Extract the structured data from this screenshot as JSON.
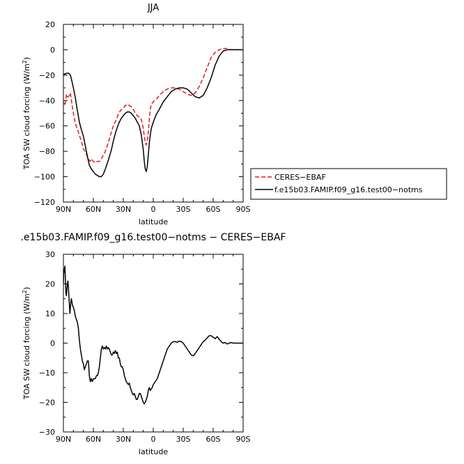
{
  "chart_data": [
    {
      "type": "line",
      "title": "JJA",
      "xlabel": "latitude",
      "ylabel": "TOA SW cloud forcing (W/m",
      "ylabel_sup": "2",
      "ylabel_close": ")",
      "xlim": [
        90,
        -90
      ],
      "ylim": [
        -120,
        20
      ],
      "x_ticks": [
        90,
        60,
        30,
        0,
        -30,
        -60,
        -90
      ],
      "x_tick_labels": [
        "90N",
        "60N",
        "30N",
        "0",
        "30S",
        "60S",
        "90S"
      ],
      "y_ticks": [
        -120,
        -100,
        -80,
        -60,
        -40,
        -20,
        0,
        20
      ],
      "y_tick_labels": [
        "−120",
        "−100",
        "−80",
        "−60",
        "−40",
        "−20",
        "0",
        "20"
      ],
      "legend": {
        "position": "right"
      },
      "series": [
        {
          "name": "CERES−EBAF",
          "color": "#e41a1c",
          "dash": "dashed",
          "x": [
            90,
            89,
            88,
            87,
            86,
            85,
            84,
            83,
            82,
            80,
            78,
            75,
            72,
            70,
            67,
            65,
            63,
            62,
            61,
            60,
            58,
            56,
            54,
            52,
            50,
            48,
            45,
            42,
            40,
            37,
            35,
            33,
            30,
            28,
            26,
            24,
            22,
            20,
            18,
            16,
            14,
            12,
            10,
            9,
            8,
            7,
            6,
            5,
            4,
            3,
            2,
            0,
            -3,
            -6,
            -10,
            -14,
            -18,
            -22,
            -26,
            -30,
            -34,
            -38,
            -42,
            -46,
            -50,
            -54,
            -58,
            -62,
            -66,
            -70,
            -74,
            -78,
            -82,
            -86,
            -90
          ],
          "y": [
            -40,
            -44,
            -42,
            -35,
            -37,
            -37,
            -36,
            -34,
            -40,
            -50,
            -58,
            -65,
            -72,
            -78,
            -82,
            -86,
            -88,
            -86,
            -87,
            -88,
            -89,
            -88,
            -88,
            -86,
            -83,
            -80,
            -73,
            -65,
            -60,
            -55,
            -51,
            -48,
            -46,
            -44,
            -43,
            -44,
            -45,
            -47,
            -50,
            -52,
            -53,
            -55,
            -62,
            -68,
            -73,
            -75,
            -72,
            -65,
            -55,
            -47,
            -43,
            -41,
            -39,
            -36,
            -33,
            -31,
            -30,
            -30,
            -31,
            -33,
            -35,
            -36,
            -34,
            -29,
            -22,
            -14,
            -6,
            -2,
            0,
            1,
            1,
            0,
            0,
            0,
            0
          ]
        },
        {
          "name": "f.e15b03.FAMIP.f09_g16.test00−notms",
          "color": "#000000",
          "dash": "solid",
          "x": [
            90,
            89,
            88,
            87,
            86,
            85,
            84,
            83,
            82,
            80,
            78,
            76,
            74,
            72,
            70,
            68,
            66,
            64,
            62,
            60,
            58,
            56,
            54,
            52,
            50,
            48,
            45,
            42,
            40,
            38,
            36,
            34,
            32,
            30,
            28,
            26,
            24,
            22,
            20,
            18,
            16,
            14,
            12,
            10,
            9,
            8,
            7,
            6,
            5,
            4,
            3,
            2,
            0,
            -3,
            -6,
            -10,
            -14,
            -18,
            -22,
            -26,
            -30,
            -34,
            -38,
            -42,
            -46,
            -50,
            -54,
            -58,
            -62,
            -66,
            -70,
            -74,
            -78,
            -82,
            -86,
            -90
          ],
          "y": [
            -20,
            -19,
            -19,
            -18.5,
            -18.5,
            -18.5,
            -19,
            -20,
            -23,
            -30,
            -38,
            -48,
            -57,
            -63,
            -68,
            -76,
            -84,
            -91,
            -94,
            -96,
            -98,
            -99,
            -100,
            -100,
            -98,
            -94,
            -87,
            -79,
            -72,
            -66,
            -61,
            -57,
            -54,
            -52,
            -50,
            -49,
            -49,
            -50,
            -52,
            -54,
            -57,
            -60,
            -67,
            -79,
            -88,
            -94,
            -96,
            -92,
            -83,
            -74,
            -67,
            -62,
            -57,
            -51,
            -47,
            -41,
            -37,
            -33,
            -31,
            -30,
            -30,
            -31,
            -34,
            -37,
            -38,
            -36,
            -30,
            -22,
            -12,
            -5,
            -1,
            0,
            0,
            0,
            0,
            0
          ]
        }
      ]
    },
    {
      "type": "line",
      "title": ".e15b03.FAMIP.f09_g16.test00−notms − CERES−EBAF",
      "xlabel": "latitude",
      "ylabel": "TOA SW cloud forcing (W/m",
      "ylabel_sup": "2",
      "ylabel_close": ")",
      "xlim": [
        90,
        -90
      ],
      "ylim": [
        -30,
        30
      ],
      "x_ticks": [
        90,
        60,
        30,
        0,
        -30,
        -60,
        -90
      ],
      "x_tick_labels": [
        "90N",
        "60N",
        "30N",
        "0",
        "30S",
        "60S",
        "90S"
      ],
      "y_ticks": [
        -30,
        -20,
        -10,
        0,
        10,
        20,
        30
      ],
      "y_tick_labels": [
        "−30",
        "−20",
        "−10",
        "0",
        "10",
        "20",
        "30"
      ],
      "series": [
        {
          "color": "#000000",
          "dash": "solid",
          "x": [
            90,
            89.5,
            89,
            88.5,
            88,
            87.5,
            87,
            86.5,
            86,
            85.5,
            85,
            84.5,
            84,
            83.5,
            83,
            82.5,
            82,
            81,
            80,
            79,
            78,
            77,
            76,
            75,
            74,
            73,
            72,
            71,
            70,
            69,
            68,
            67,
            66,
            65,
            64,
            63,
            62,
            61,
            60,
            59,
            58,
            57,
            56,
            55,
            54,
            53,
            52,
            51,
            50,
            49,
            48,
            47,
            46,
            45,
            44,
            43,
            42,
            41,
            40,
            39,
            38,
            37,
            36,
            35,
            34,
            33,
            32,
            31,
            30,
            29,
            28,
            27,
            26,
            25,
            24,
            23,
            22,
            21,
            20,
            19,
            18,
            17,
            16,
            15,
            14,
            13,
            12,
            11,
            10,
            9,
            8,
            7,
            6,
            5,
            4,
            3,
            2,
            1,
            0,
            -2,
            -4,
            -6,
            -8,
            -10,
            -12,
            -14,
            -16,
            -18,
            -20,
            -22,
            -24,
            -26,
            -28,
            -30,
            -32,
            -34,
            -36,
            -38,
            -40,
            -42,
            -44,
            -46,
            -48,
            -50,
            -52,
            -54,
            -56,
            -58,
            -60,
            -62,
            -64,
            -65,
            -66,
            -67,
            -68,
            -70,
            -72,
            -74,
            -76,
            -78,
            -80,
            -82,
            -84,
            -86,
            -88,
            -90
          ],
          "y": [
            20,
            25,
            24,
            26,
            22,
            17,
            16,
            18,
            20,
            21,
            19,
            16,
            13,
            10,
            12,
            14,
            15,
            13,
            12,
            11,
            9,
            8,
            7,
            5,
            1,
            -2,
            -4,
            -6,
            -7,
            -9,
            -8,
            -7,
            -6,
            -6,
            -11,
            -13,
            -12,
            -13,
            -12,
            -12,
            -12,
            -11,
            -11,
            -10,
            -8,
            -5,
            -2,
            -1,
            -2,
            -1.5,
            -2,
            -1,
            -2,
            -1.5,
            -2,
            -3,
            -4,
            -4,
            -3,
            -3.5,
            -2.5,
            -3.5,
            -3,
            -5,
            -5,
            -7,
            -8,
            -8,
            -9,
            -11,
            -12,
            -13,
            -13.5,
            -14,
            -13.5,
            -15,
            -16,
            -17,
            -17.5,
            -17,
            -18,
            -19,
            -19,
            -18,
            -17,
            -17,
            -18,
            -19,
            -20,
            -20.5,
            -20,
            -19,
            -18,
            -16,
            -15,
            -16,
            -15.5,
            -15,
            -14,
            -13,
            -12,
            -10,
            -8,
            -6,
            -4,
            -2,
            -1,
            0,
            0.5,
            0.5,
            0.3,
            0.7,
            0.5,
            0,
            -1,
            -2,
            -3,
            -4,
            -4.3,
            -3.5,
            -2.5,
            -1.5,
            -0.5,
            0.5,
            1,
            1.8,
            2.5,
            2.5,
            2,
            1.5,
            2.2,
            1.8,
            1.2,
            1,
            0.5,
            0,
            0.2,
            -0.3,
            0,
            0.2,
            0,
            0,
            0,
            0,
            0,
            0
          ]
        }
      ]
    }
  ]
}
